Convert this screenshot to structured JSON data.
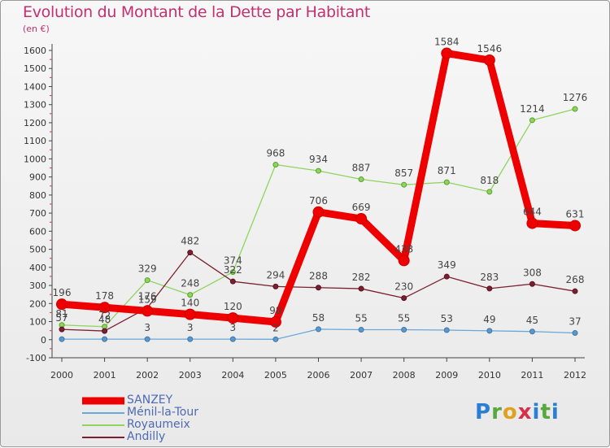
{
  "title": "Evolution du Montant de la Dette par Habitant",
  "unit": "(en €)",
  "logo": "Proxiti",
  "chart_data": {
    "type": "line",
    "title": "Evolution du Montant de la Dette par Habitant",
    "ylabel": "(en €)",
    "xlabel": "",
    "x": [
      "2000",
      "2001",
      "2002",
      "2003",
      "2004",
      "2005",
      "2006",
      "2007",
      "2008",
      "2009",
      "2010",
      "2011",
      "2012"
    ],
    "ylim": [
      -100,
      1600
    ],
    "yticks": [
      -100,
      0,
      100,
      200,
      300,
      400,
      500,
      600,
      700,
      800,
      900,
      1000,
      1100,
      1200,
      1300,
      1400,
      1500,
      1600
    ],
    "grid": false,
    "legend_position": "bottom-left",
    "series": [
      {
        "name": "SANZEY",
        "color": "#ee0000",
        "values": [
          196,
          178,
          159,
          140,
          120,
          98,
          706,
          669,
          438,
          1584,
          1546,
          644,
          631
        ],
        "labels": [
          "196",
          "178",
          "159",
          "140",
          "120",
          "98",
          "706",
          "669",
          "438",
          "1584",
          "1546",
          "644",
          "631"
        ]
      },
      {
        "name": "Ménil-la-Tour",
        "color": "#6aa6d6",
        "values": [
          3,
          3,
          3,
          3,
          3,
          2,
          58,
          55,
          55,
          53,
          49,
          45,
          37
        ],
        "labels": [
          "",
          "",
          "3",
          "3",
          "3",
          "2",
          "58",
          "55",
          "55",
          "53",
          "49",
          "45",
          "37"
        ]
      },
      {
        "name": "Royaumeix",
        "color": "#8ed45e",
        "values": [
          81,
          72,
          329,
          248,
          374,
          968,
          934,
          887,
          857,
          871,
          818,
          1214,
          1276
        ],
        "labels": [
          "81",
          "72",
          "329",
          "248",
          "374",
          "968",
          "934",
          "887",
          "857",
          "871",
          "818",
          "1214",
          "1276"
        ]
      },
      {
        "name": "Andilly",
        "color": "#7a2030",
        "values": [
          57,
          48,
          176,
          482,
          322,
          294,
          288,
          282,
          230,
          349,
          283,
          308,
          268
        ],
        "labels": [
          "57",
          "48",
          "176",
          "482",
          "322",
          "294",
          "288",
          "282",
          "230",
          "349",
          "283",
          "308",
          "268"
        ]
      }
    ]
  }
}
